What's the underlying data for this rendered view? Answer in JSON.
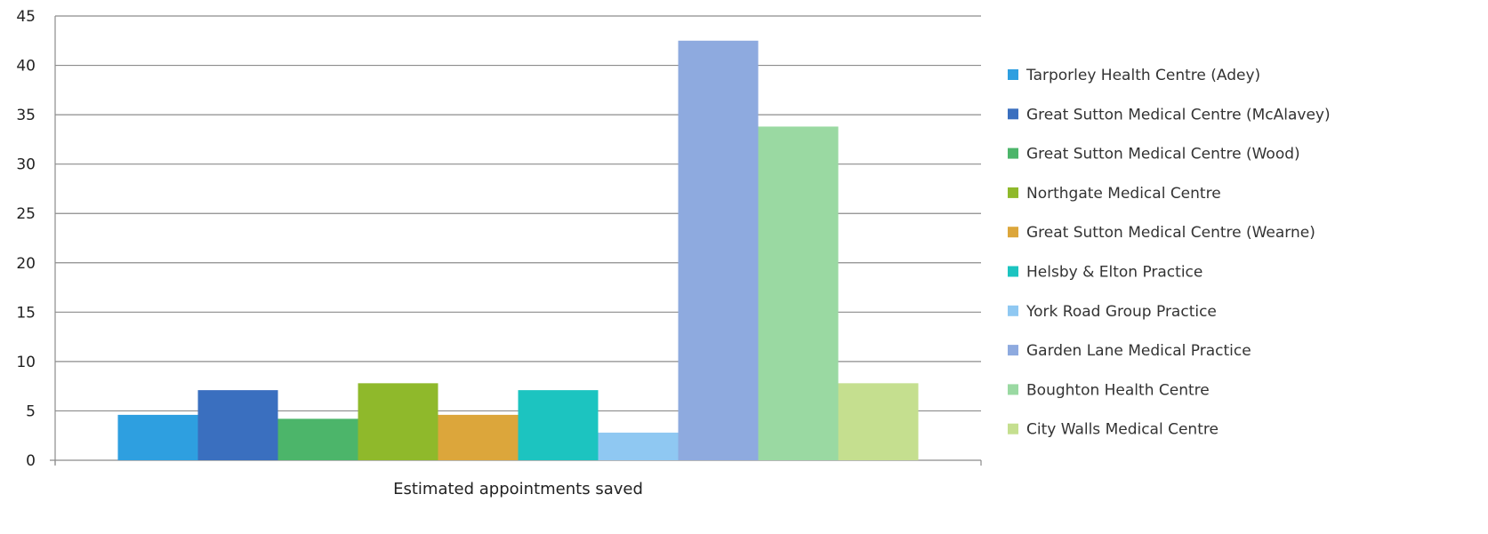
{
  "chart_data": {
    "type": "bar",
    "categories": [
      "Estimated appointments saved"
    ],
    "series": [
      {
        "name": "Tarporley Health Centre (Adey)",
        "values": [
          4.6
        ],
        "color": "#2e9fe0"
      },
      {
        "name": "Great Sutton Medical Centre (McAlavey)",
        "values": [
          7.1
        ],
        "color": "#3a6fbf"
      },
      {
        "name": "Great Sutton Medical Centre (Wood)",
        "values": [
          4.2
        ],
        "color": "#4cb56a"
      },
      {
        "name": "Northgate Medical Centre",
        "values": [
          7.8
        ],
        "color": "#8fb92b"
      },
      {
        "name": "Great Sutton Medical Centre (Wearne)",
        "values": [
          4.6
        ],
        "color": "#dca63b"
      },
      {
        "name": "Helsby & Elton Practice",
        "values": [
          7.1
        ],
        "color": "#1cc4c0"
      },
      {
        "name": "York Road Group Practice",
        "values": [
          2.8
        ],
        "color": "#8fc8f2"
      },
      {
        "name": "Garden Lane Medical Practice",
        "values": [
          42.5
        ],
        "color": "#8eaadf"
      },
      {
        "name": "Boughton Health Centre",
        "values": [
          33.8
        ],
        "color": "#9ad9a2"
      },
      {
        "name": "City Walls Medical Centre",
        "values": [
          7.8
        ],
        "color": "#c5df8f"
      }
    ],
    "yticks": [
      "0",
      "5",
      "10",
      "15",
      "20",
      "25",
      "30",
      "35",
      "40",
      "45"
    ],
    "ylim": [
      0,
      45
    ],
    "grid": true,
    "legend_position": "right",
    "title": "",
    "xlabel": "",
    "ylabel": ""
  }
}
